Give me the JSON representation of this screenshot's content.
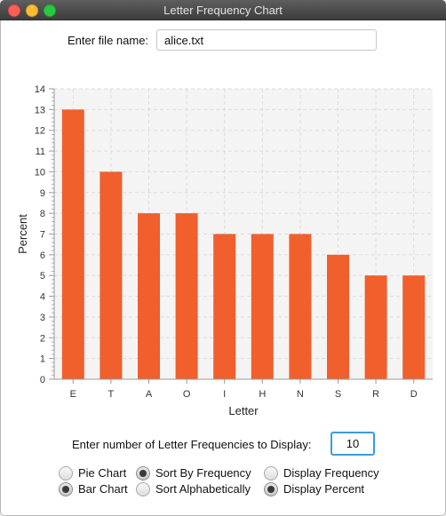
{
  "window": {
    "title": "Letter Frequency Chart"
  },
  "file": {
    "label": "Enter file name:",
    "value": "alice.txt"
  },
  "count": {
    "label": "Enter number of Letter Frequencies to Display:",
    "value": "10"
  },
  "options": {
    "pie_chart": {
      "label": "Pie Chart",
      "selected": false
    },
    "bar_chart": {
      "label": "Bar Chart",
      "selected": true
    },
    "sort_frequency": {
      "label": "Sort By Frequency",
      "selected": true
    },
    "sort_alpha": {
      "label": "Sort Alphabetically",
      "selected": false
    },
    "display_frequency": {
      "label": "Display Frequency",
      "selected": false
    },
    "display_percent": {
      "label": "Display Percent",
      "selected": true
    }
  },
  "colors": {
    "bar": "#f05f2c",
    "plot_bg": "#f4f4f4",
    "grid": "#dcdcdc"
  },
  "chart_data": {
    "type": "bar",
    "categories": [
      "E",
      "T",
      "A",
      "O",
      "I",
      "H",
      "N",
      "S",
      "R",
      "D"
    ],
    "values": [
      13,
      10,
      8,
      8,
      7,
      7,
      7,
      6,
      5,
      5
    ],
    "xlabel": "Letter",
    "ylabel": "Percent",
    "ylim": [
      0,
      14
    ],
    "yticks": [
      "0",
      "1",
      "2",
      "3",
      "4",
      "5",
      "6",
      "7",
      "8",
      "9",
      "10",
      "11",
      "12",
      "13",
      "14"
    ],
    "grid": true,
    "legend": "none"
  }
}
